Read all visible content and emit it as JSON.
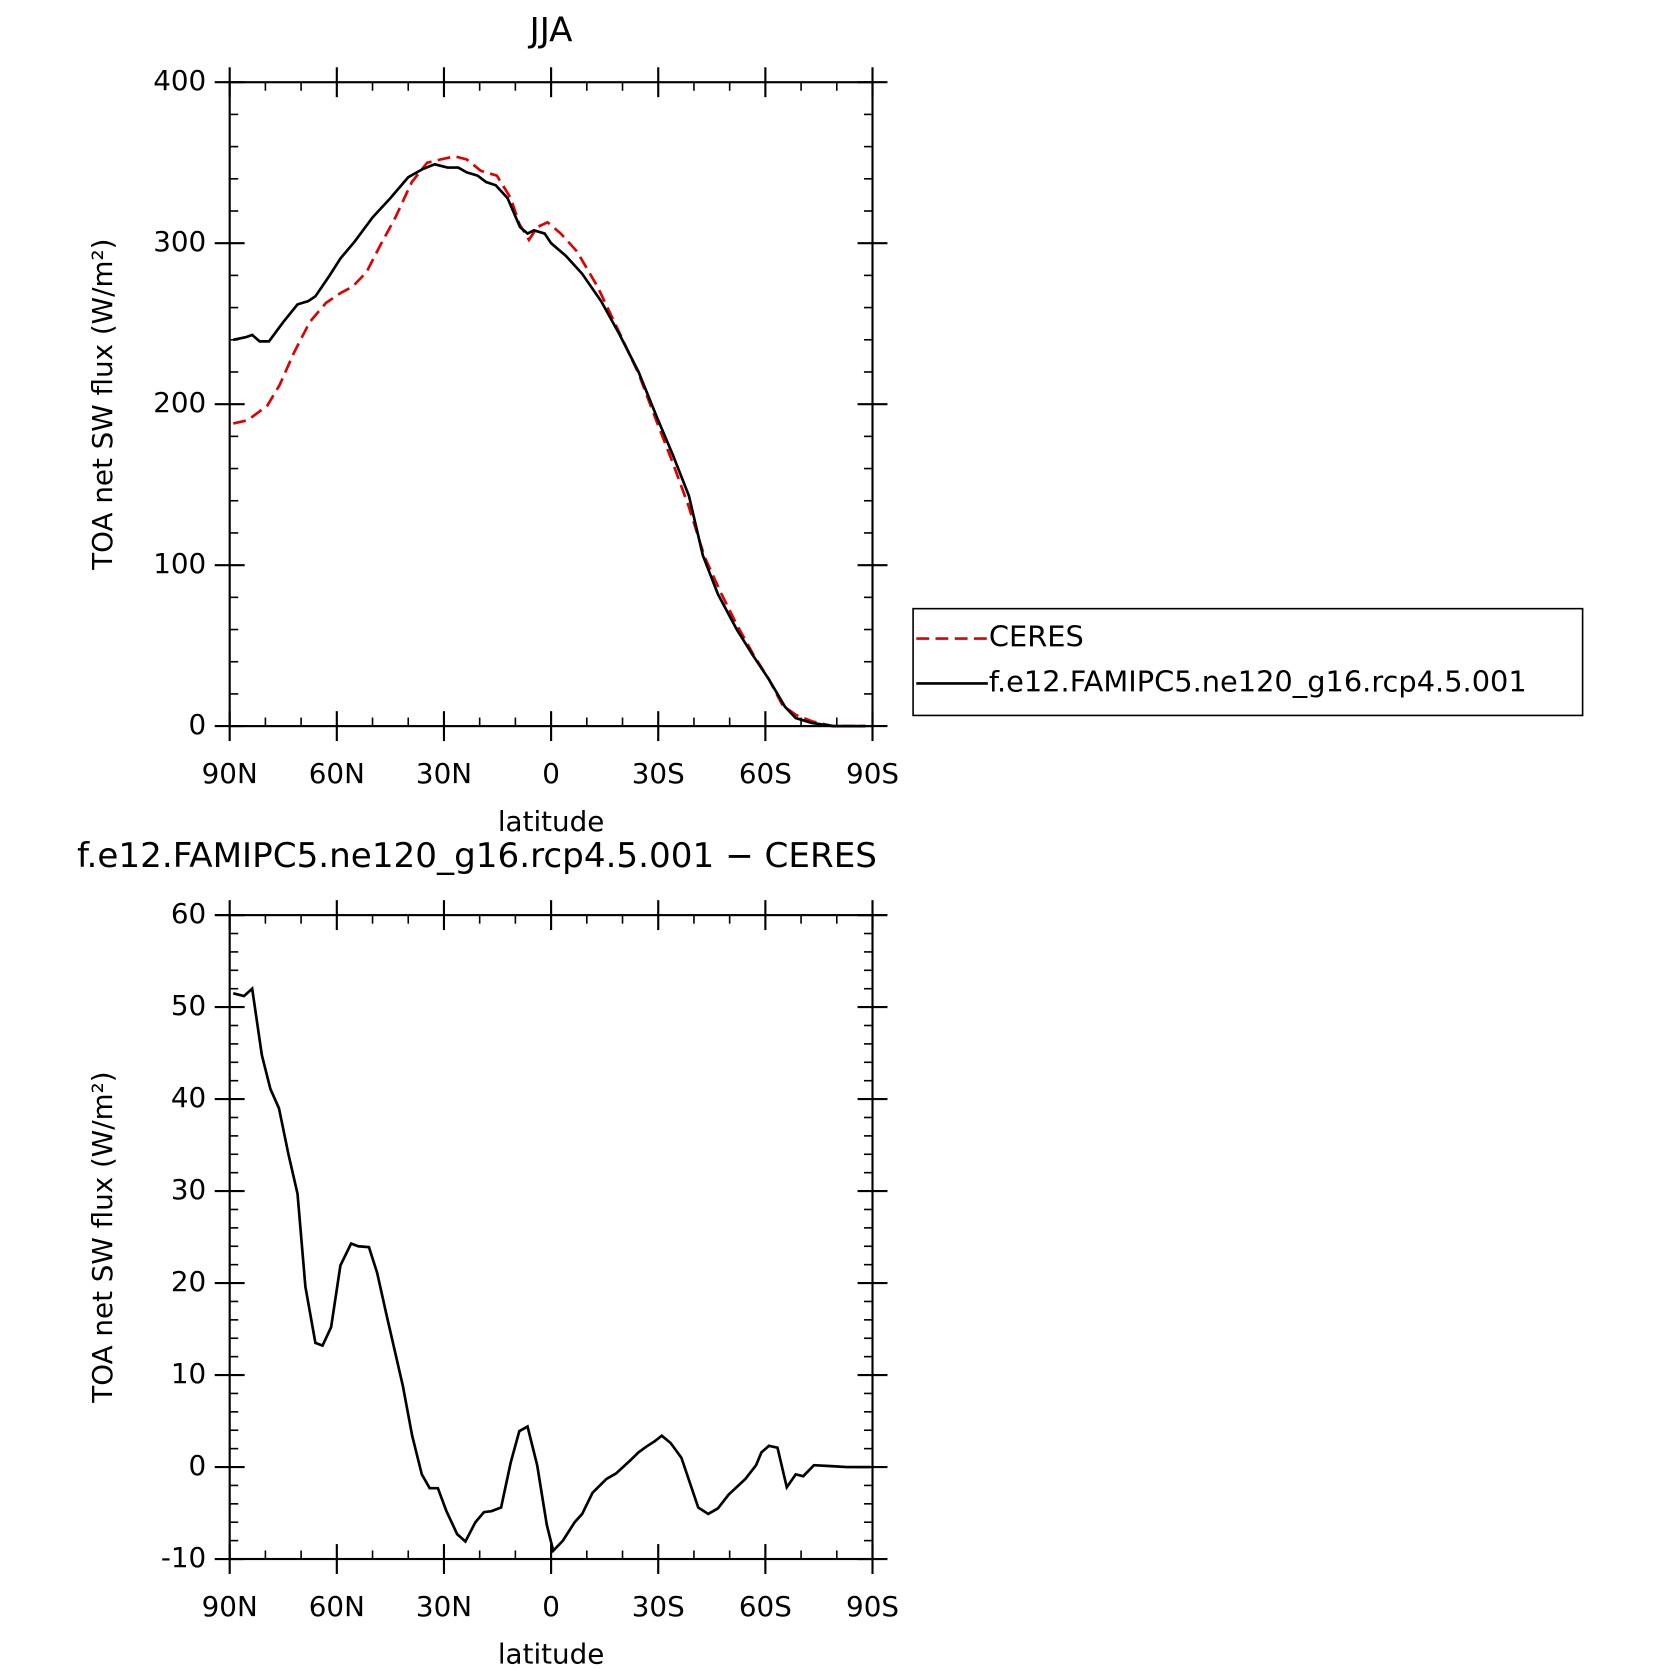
{
  "chart_data": [
    {
      "type": "line",
      "title": "JJA",
      "xlabel": "latitude",
      "ylabel": "TOA net SW flux (W/m²)",
      "xlim": [
        90,
        -90
      ],
      "ylim": [
        0,
        400
      ],
      "xticks": [
        {
          "value": 90,
          "label": "90N"
        },
        {
          "value": 60,
          "label": "60N"
        },
        {
          "value": 30,
          "label": "30N"
        },
        0,
        {
          "value": -30,
          "label": "30S"
        },
        {
          "value": -60,
          "label": "60S"
        },
        {
          "value": -90,
          "label": "90S"
        }
      ],
      "yticks": [
        0,
        100,
        200,
        300,
        400
      ],
      "series": [
        {
          "name": "CERES",
          "color": "#e00000",
          "dash": true,
          "x": [
            89,
            85,
            79.5,
            76,
            72,
            67.6,
            63,
            59,
            55.6,
            51.7,
            48,
            43.6,
            39,
            34.7,
            31,
            27,
            23.6,
            19.7,
            15.2,
            11.3,
            8.9,
            6.2,
            3.9,
            1,
            -2.7,
            -7.2,
            -13,
            -19,
            -24.5,
            -29.6,
            -34,
            -38.6,
            -43,
            -47.5,
            -52,
            -56.5,
            -61,
            -64.8,
            -68.5,
            -73,
            -79,
            -88
          ],
          "values": [
            188,
            190,
            199,
            212,
            232,
            251,
            263,
            269,
            273,
            282,
            298,
            316,
            338,
            350,
            352,
            354,
            352,
            345,
            342,
            328,
            312,
            302,
            310,
            313,
            306,
            295,
            273,
            245,
            219,
            189,
            164,
            136,
            105,
            83,
            63,
            45,
            29,
            13,
            7,
            3,
            0,
            0
          ]
        },
        {
          "name": "f.e12.FAMIPC5.ne120_g16.rcp4.5.001",
          "color": "#000000",
          "dash": false,
          "x": [
            89,
            85.5,
            83.7,
            81.6,
            79,
            75,
            71,
            68,
            66,
            62,
            59,
            55,
            50,
            45,
            40,
            36,
            32.6,
            29,
            26,
            23.6,
            20.6,
            18.2,
            15.5,
            12.2,
            8.7,
            6.6,
            4.8,
            1.8,
            0,
            -4.2,
            -8.7,
            -14,
            -19,
            -24.5,
            -29.6,
            -34,
            -38.6,
            -42.5,
            -46.7,
            -52,
            -56.5,
            -61,
            -65.5,
            -68.5,
            -73,
            -79,
            -88
          ],
          "values": [
            240,
            241.6,
            243,
            239,
            239,
            251,
            262,
            264,
            267,
            280,
            290.5,
            301,
            316,
            328,
            341,
            346,
            349,
            347,
            347,
            344,
            342,
            338,
            336,
            328,
            310,
            306,
            308,
            306,
            300,
            292,
            281,
            264,
            244,
            220,
            192,
            169,
            143,
            106,
            82,
            60,
            44,
            29,
            12,
            5,
            2,
            0,
            0
          ]
        }
      ]
    },
    {
      "type": "line",
      "title": "f.e12.FAMIPC5.ne120_g16.rcp4.5.001 − CERES",
      "xlabel": "latitude",
      "ylabel": "TOA net SW flux (W/m²)",
      "xlim": [
        90,
        -90
      ],
      "ylim": [
        -10,
        60
      ],
      "xticks": [
        {
          "value": 90,
          "label": "90N"
        },
        {
          "value": 60,
          "label": "60N"
        },
        {
          "value": 30,
          "label": "30N"
        },
        0,
        {
          "value": -30,
          "label": "30S"
        },
        {
          "value": -60,
          "label": "60S"
        },
        {
          "value": -90,
          "label": "90S"
        }
      ],
      "yticks": [
        -10,
        0,
        10,
        20,
        30,
        40,
        50,
        60
      ],
      "series": [
        {
          "color": "#000000",
          "dash": false,
          "x": [
            89,
            86,
            83.7,
            81,
            78.6,
            76.2,
            73.6,
            71,
            68.8,
            66,
            64,
            61.6,
            59,
            56,
            54,
            51,
            48.7,
            46,
            41.5,
            38.9,
            36.2,
            34,
            31.7,
            29.3,
            26.3,
            24,
            21.2,
            18.8,
            16.7,
            14,
            11.3,
            8.9,
            6.6,
            3.9,
            1.2,
            -0.6,
            -3.3,
            -6.6,
            -8.7,
            -11.6,
            -15.5,
            -18.2,
            -22.1,
            -24.5,
            -26.6,
            -29,
            -31,
            -33.5,
            -36.5,
            -41.2,
            -44,
            -46.7,
            -49.7,
            -54.4,
            -57.4,
            -58.9,
            -61,
            -63.4,
            -66,
            -68.5,
            -70.6,
            -73.6,
            -78.4,
            -82.8,
            -89.4
          ],
          "values": [
            51.5,
            51.2,
            52,
            44.8,
            41.1,
            39,
            34.1,
            29.7,
            19.6,
            13.5,
            13.2,
            15.2,
            21.9,
            24.3,
            24,
            23.9,
            21.1,
            16.4,
            8.8,
            3.4,
            -0.8,
            -2.3,
            -2.3,
            -4.8,
            -7.3,
            -8.1,
            -6,
            -4.9,
            -4.8,
            -4.4,
            0.5,
            3.9,
            4.4,
            0.2,
            -6.3,
            -9.1,
            -8,
            -6,
            -5.1,
            -2.8,
            -1.3,
            -0.7,
            0.7,
            1.6,
            2.2,
            2.8,
            3.4,
            2.6,
            1,
            -4.4,
            -5.1,
            -4.5,
            -3,
            -1.3,
            0.2,
            1.6,
            2.3,
            2.1,
            -2.2,
            -0.8,
            -1,
            0.2,
            0.1,
            0,
            0
          ]
        }
      ]
    }
  ]
}
